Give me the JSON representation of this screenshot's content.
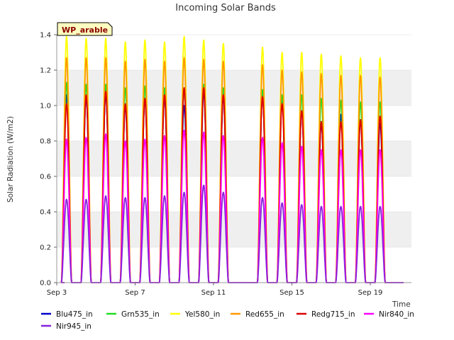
{
  "chart_data": {
    "type": "line",
    "title": "Incoming Solar Bands",
    "ylabel": "Solar Radiation (W/m2)",
    "xlabel": "Time",
    "badge": "WP_arable",
    "ylim": [
      0,
      1.4
    ],
    "xlim": [
      3.0,
      21.1
    ],
    "yticks": [
      0.0,
      0.2,
      0.4,
      0.6,
      0.8,
      1.0,
      1.2,
      1.4
    ],
    "ytick_labels": [
      "0.0",
      "0.2",
      "0.4",
      "0.6",
      "0.8",
      "1.0",
      "1.2",
      "1.4"
    ],
    "xticks": [
      3,
      7,
      11,
      15,
      19
    ],
    "xtick_labels": [
      "Sep 3",
      "Sep 7",
      "Sep 11",
      "Sep 15",
      "Sep 19"
    ],
    "grid": "horizontal bands",
    "legend_position": "bottom",
    "days": [
      3.5,
      4.5,
      5.5,
      6.5,
      7.5,
      8.5,
      9.5,
      10.5,
      11.5,
      13.5,
      14.5,
      15.5,
      16.5,
      17.5,
      18.5,
      19.5
    ],
    "series": [
      {
        "name": "Blu475_in",
        "color": "#0000cc",
        "values": [
          1.06,
          1.05,
          1.07,
          1.0,
          1.04,
          1.05,
          1.0,
          1.08,
          1.05,
          1.06,
          1.05,
          0.97,
          0.9,
          0.95,
          0.92,
          0.9
        ]
      },
      {
        "name": "Grn535_in",
        "color": "#22dd22",
        "values": [
          1.13,
          1.12,
          1.12,
          1.1,
          1.11,
          1.1,
          1.1,
          1.12,
          1.1,
          1.09,
          1.06,
          1.06,
          1.04,
          1.03,
          1.02,
          1.02
        ]
      },
      {
        "name": "Yel580_in",
        "color": "#ffff00",
        "values": [
          1.39,
          1.38,
          1.38,
          1.36,
          1.37,
          1.36,
          1.39,
          1.37,
          1.35,
          1.33,
          1.3,
          1.3,
          1.29,
          1.28,
          1.27,
          1.27
        ]
      },
      {
        "name": "Red655_in",
        "color": "#ff9900",
        "values": [
          1.27,
          1.27,
          1.27,
          1.25,
          1.26,
          1.25,
          1.27,
          1.26,
          1.25,
          1.23,
          1.2,
          1.19,
          1.18,
          1.17,
          1.17,
          1.16
        ]
      },
      {
        "name": "Redg715_in",
        "color": "#dd0000",
        "values": [
          1.01,
          1.06,
          1.08,
          1.01,
          1.04,
          1.06,
          1.1,
          1.1,
          1.06,
          1.05,
          1.01,
          0.97,
          0.91,
          0.91,
          0.92,
          0.94
        ]
      },
      {
        "name": "Nir840_in",
        "color": "#ff00ff",
        "values": [
          0.81,
          0.82,
          0.84,
          0.8,
          0.81,
          0.83,
          0.86,
          0.85,
          0.83,
          0.82,
          0.79,
          0.77,
          0.75,
          0.75,
          0.75,
          0.75
        ]
      },
      {
        "name": "Nir945_in",
        "color": "#8822dd",
        "values": [
          0.47,
          0.47,
          0.49,
          0.48,
          0.48,
          0.49,
          0.51,
          0.55,
          0.51,
          0.48,
          0.45,
          0.44,
          0.43,
          0.43,
          0.43,
          0.43
        ]
      }
    ]
  }
}
